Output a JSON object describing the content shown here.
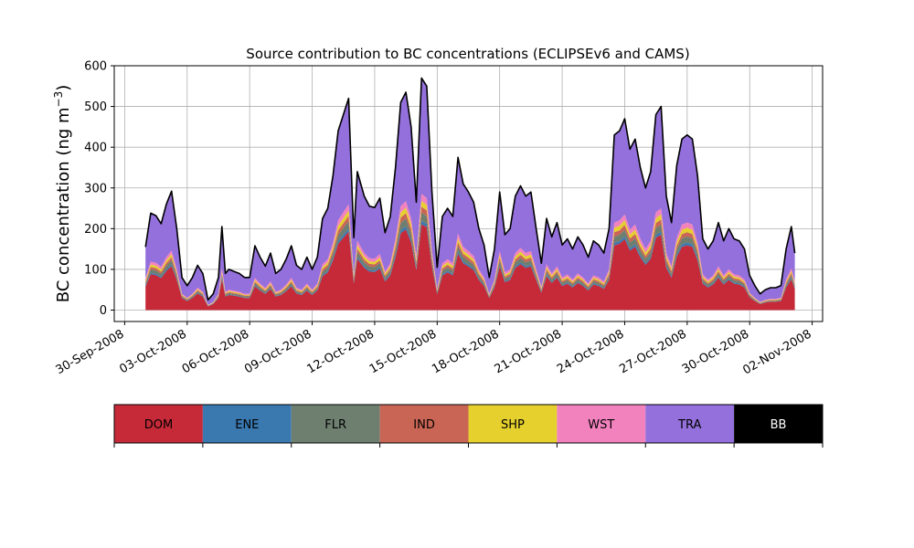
{
  "chart_data": {
    "type": "area",
    "stacked": true,
    "title": "Source contribution to BC concentrations (ECLIPSEv6 and CAMS)",
    "ylabel": "BC concentration (ng m",
    "ylabel_unit_exp": "−3",
    "ylabel_close": ")",
    "xlabel": "",
    "ylim": [
      -28,
      600
    ],
    "yticks": [
      0,
      100,
      200,
      300,
      400,
      500,
      600
    ],
    "xlim": [
      "2008-09-29T12:00",
      "2008-11-02T12:00"
    ],
    "xticks": [
      "2008-09-30",
      "2008-10-03",
      "2008-10-06",
      "2008-10-09",
      "2008-10-12",
      "2008-10-15",
      "2008-10-18",
      "2008-10-21",
      "2008-10-24",
      "2008-10-27",
      "2008-10-30",
      "2008-11-02"
    ],
    "xtick_labels": [
      "30-Sep-2008",
      "03-Oct-2008",
      "06-Oct-2008",
      "09-Oct-2008",
      "12-Oct-2008",
      "15-Oct-2008",
      "18-Oct-2008",
      "21-Oct-2008",
      "24-Oct-2008",
      "27-Oct-2008",
      "30-Oct-2008",
      "02-Nov-2008"
    ],
    "grid": true,
    "legend": [
      {
        "name": "DOM",
        "color": "#c62a38"
      },
      {
        "name": "ENE",
        "color": "#3a78b0"
      },
      {
        "name": "FLR",
        "color": "#6e7f70"
      },
      {
        "name": "IND",
        "color": "#c96555"
      },
      {
        "name": "SHP",
        "color": "#e5d02e"
      },
      {
        "name": "WST",
        "color": "#f282be"
      },
      {
        "name": "TRA",
        "color": "#9370db"
      },
      {
        "name": "BB",
        "color": "#000000"
      }
    ],
    "total_curve": [
      [
        "2008-10-01T00:00",
        155
      ],
      [
        "2008-10-01T06:00",
        238
      ],
      [
        "2008-10-01T12:00",
        232
      ],
      [
        "2008-10-01T18:00",
        212
      ],
      [
        "2008-10-02T00:00",
        260
      ],
      [
        "2008-10-02T06:00",
        292
      ],
      [
        "2008-10-02T12:00",
        200
      ],
      [
        "2008-10-02T18:00",
        80
      ],
      [
        "2008-10-03T00:00",
        60
      ],
      [
        "2008-10-03T06:00",
        80
      ],
      [
        "2008-10-03T12:00",
        110
      ],
      [
        "2008-10-03T18:00",
        90
      ],
      [
        "2008-10-04T00:00",
        25
      ],
      [
        "2008-10-04T06:00",
        40
      ],
      [
        "2008-10-04T12:00",
        80
      ],
      [
        "2008-10-04T16:00",
        205
      ],
      [
        "2008-10-04T20:00",
        90
      ],
      [
        "2008-10-05T00:00",
        100
      ],
      [
        "2008-10-05T06:00",
        95
      ],
      [
        "2008-10-05T12:00",
        90
      ],
      [
        "2008-10-05T18:00",
        80
      ],
      [
        "2008-10-06T00:00",
        80
      ],
      [
        "2008-10-06T06:00",
        158
      ],
      [
        "2008-10-06T12:00",
        130
      ],
      [
        "2008-10-06T18:00",
        108
      ],
      [
        "2008-10-07T00:00",
        140
      ],
      [
        "2008-10-07T06:00",
        90
      ],
      [
        "2008-10-07T12:00",
        100
      ],
      [
        "2008-10-07T18:00",
        125
      ],
      [
        "2008-10-08T00:00",
        158
      ],
      [
        "2008-10-08T06:00",
        110
      ],
      [
        "2008-10-08T12:00",
        100
      ],
      [
        "2008-10-08T18:00",
        130
      ],
      [
        "2008-10-09T00:00",
        100
      ],
      [
        "2008-10-09T06:00",
        130
      ],
      [
        "2008-10-09T12:00",
        225
      ],
      [
        "2008-10-09T18:00",
        250
      ],
      [
        "2008-10-10T00:00",
        330
      ],
      [
        "2008-10-10T06:00",
        440
      ],
      [
        "2008-10-10T12:00",
        480
      ],
      [
        "2008-10-10T18:00",
        520
      ],
      [
        "2008-10-11T00:00",
        178
      ],
      [
        "2008-10-11T04:00",
        340
      ],
      [
        "2008-10-11T12:00",
        280
      ],
      [
        "2008-10-11T18:00",
        255
      ],
      [
        "2008-10-12T00:00",
        252
      ],
      [
        "2008-10-12T06:00",
        275
      ],
      [
        "2008-10-12T12:00",
        190
      ],
      [
        "2008-10-12T18:00",
        230
      ],
      [
        "2008-10-13T00:00",
        350
      ],
      [
        "2008-10-13T06:00",
        510
      ],
      [
        "2008-10-13T12:00",
        535
      ],
      [
        "2008-10-13T18:00",
        450
      ],
      [
        "2008-10-14T00:00",
        265
      ],
      [
        "2008-10-14T06:00",
        570
      ],
      [
        "2008-10-14T12:00",
        550
      ],
      [
        "2008-10-14T18:00",
        290
      ],
      [
        "2008-10-15T00:00",
        105
      ],
      [
        "2008-10-15T06:00",
        230
      ],
      [
        "2008-10-15T12:00",
        250
      ],
      [
        "2008-10-15T18:00",
        230
      ],
      [
        "2008-10-16T00:00",
        375
      ],
      [
        "2008-10-16T06:00",
        310
      ],
      [
        "2008-10-16T12:00",
        290
      ],
      [
        "2008-10-16T18:00",
        265
      ],
      [
        "2008-10-17T00:00",
        200
      ],
      [
        "2008-10-17T06:00",
        160
      ],
      [
        "2008-10-17T12:00",
        80
      ],
      [
        "2008-10-17T18:00",
        150
      ],
      [
        "2008-10-18T00:00",
        290
      ],
      [
        "2008-10-18T06:00",
        185
      ],
      [
        "2008-10-18T12:00",
        200
      ],
      [
        "2008-10-18T18:00",
        280
      ],
      [
        "2008-10-19T00:00",
        305
      ],
      [
        "2008-10-19T06:00",
        280
      ],
      [
        "2008-10-19T12:00",
        290
      ],
      [
        "2008-10-19T18:00",
        200
      ],
      [
        "2008-10-20T00:00",
        115
      ],
      [
        "2008-10-20T06:00",
        225
      ],
      [
        "2008-10-20T12:00",
        180
      ],
      [
        "2008-10-20T18:00",
        215
      ],
      [
        "2008-10-21T00:00",
        160
      ],
      [
        "2008-10-21T06:00",
        175
      ],
      [
        "2008-10-21T12:00",
        150
      ],
      [
        "2008-10-21T18:00",
        180
      ],
      [
        "2008-10-22T00:00",
        160
      ],
      [
        "2008-10-22T06:00",
        130
      ],
      [
        "2008-10-22T12:00",
        170
      ],
      [
        "2008-10-22T18:00",
        160
      ],
      [
        "2008-10-23T00:00",
        140
      ],
      [
        "2008-10-23T06:00",
        200
      ],
      [
        "2008-10-23T12:00",
        430
      ],
      [
        "2008-10-23T18:00",
        440
      ],
      [
        "2008-10-24T00:00",
        470
      ],
      [
        "2008-10-24T06:00",
        395
      ],
      [
        "2008-10-24T12:00",
        420
      ],
      [
        "2008-10-24T18:00",
        350
      ],
      [
        "2008-10-25T00:00",
        300
      ],
      [
        "2008-10-25T06:00",
        340
      ],
      [
        "2008-10-25T12:00",
        480
      ],
      [
        "2008-10-25T18:00",
        500
      ],
      [
        "2008-10-26T00:00",
        280
      ],
      [
        "2008-10-26T06:00",
        215
      ],
      [
        "2008-10-26T12:00",
        355
      ],
      [
        "2008-10-26T18:00",
        420
      ],
      [
        "2008-10-27T00:00",
        430
      ],
      [
        "2008-10-27T06:00",
        420
      ],
      [
        "2008-10-27T12:00",
        330
      ],
      [
        "2008-10-27T18:00",
        175
      ],
      [
        "2008-10-28T00:00",
        150
      ],
      [
        "2008-10-28T06:00",
        170
      ],
      [
        "2008-10-28T12:00",
        215
      ],
      [
        "2008-10-28T18:00",
        170
      ],
      [
        "2008-10-29T00:00",
        200
      ],
      [
        "2008-10-29T06:00",
        175
      ],
      [
        "2008-10-29T12:00",
        170
      ],
      [
        "2008-10-29T18:00",
        150
      ],
      [
        "2008-10-30T00:00",
        85
      ],
      [
        "2008-10-30T06:00",
        60
      ],
      [
        "2008-10-30T12:00",
        40
      ],
      [
        "2008-10-30T18:00",
        50
      ],
      [
        "2008-10-31T00:00",
        55
      ],
      [
        "2008-10-31T06:00",
        55
      ],
      [
        "2008-10-31T12:00",
        60
      ],
      [
        "2008-10-31T18:00",
        150
      ],
      [
        "2008-11-01T00:00",
        205
      ],
      [
        "2008-11-01T04:00",
        140
      ]
    ],
    "stack_fractions": {
      "DOM": 0.37,
      "ENE": 0.015,
      "FLR": 0.035,
      "IND": 0.025,
      "SHP": 0.025,
      "WST": 0.03
    }
  }
}
